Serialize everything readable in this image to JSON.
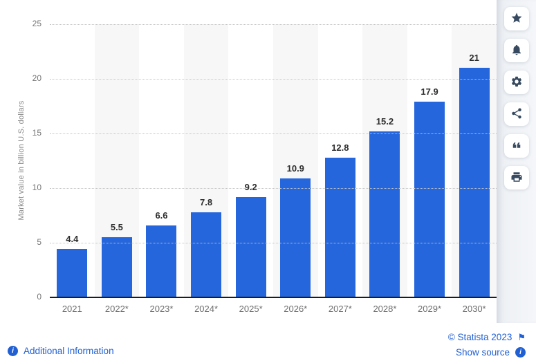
{
  "chart_data": {
    "type": "bar",
    "title": "",
    "categories": [
      "2021",
      "2022*",
      "2023*",
      "2024*",
      "2025*",
      "2026*",
      "2027*",
      "2028*",
      "2029*",
      "2030*"
    ],
    "values": [
      4.4,
      5.5,
      6.6,
      7.8,
      9.2,
      10.9,
      12.8,
      15.2,
      17.9,
      21
    ],
    "value_labels": [
      "4.4",
      "5.5",
      "6.6",
      "7.8",
      "9.2",
      "10.9",
      "12.8",
      "15.2",
      "17.9",
      "21"
    ],
    "xlabel": "",
    "ylabel": "Market value in billion U.S. dollars",
    "ylim": [
      0,
      25
    ],
    "yticks": [
      0,
      5,
      10,
      15,
      20,
      25
    ],
    "grid": "horizontal-dotted",
    "legend": "none",
    "bar_color": "#2566dc",
    "column_stripe_color": "#f7f7f7"
  },
  "toolbar": {
    "icon_color": "#36495f",
    "buttons": [
      {
        "name": "favorite",
        "icon": "star-icon"
      },
      {
        "name": "notifications",
        "icon": "bell-icon"
      },
      {
        "name": "settings",
        "icon": "gear-icon"
      },
      {
        "name": "share",
        "icon": "share-icon"
      },
      {
        "name": "cite",
        "icon": "quote-icon"
      },
      {
        "name": "print",
        "icon": "printer-icon"
      }
    ]
  },
  "footer": {
    "additional_information_label": "Additional Information",
    "copyright_label": "© Statista 2023",
    "show_source_label": "Show source",
    "link_color": "#2160d3",
    "info_icon_glyph": "i",
    "flag_icon_glyph": "⚑"
  }
}
